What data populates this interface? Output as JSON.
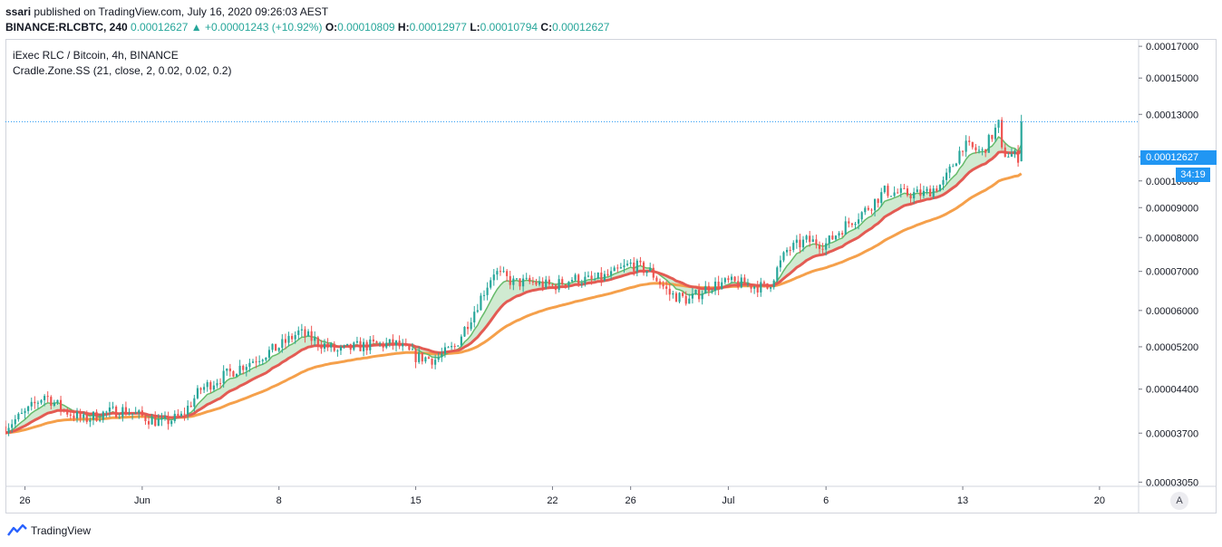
{
  "header": {
    "publisher": "ssari",
    "published_text": "published on TradingView.com, July 16, 2020 09:26:03 AEST",
    "symbol": "BINANCE:RLCBTC, 240",
    "last_price": "0.00012627",
    "change": "+0.00001243 (+10.92%)",
    "open_label": "O:",
    "open": "0.00010809",
    "high_label": "H:",
    "high": "0.00012977",
    "low_label": "L:",
    "low": "0.00010794",
    "close_label": "C:",
    "close": "0.00012627"
  },
  "legend": {
    "title": "iExec RLC / Bitcoin, 4h, BINANCE",
    "study": "Cradle.Zone.SS (21, close, 2, 0.02, 0.02, 0.2)"
  },
  "badges": {
    "price": "0.00012627",
    "countdown": "34:19",
    "auto_scale": "A"
  },
  "footer": {
    "brand": "TradingView",
    "logo_icon": "tradingview-logo-icon"
  },
  "colors": {
    "up": "#26a69a",
    "down": "#ef5350",
    "ema_fast": "#66bb6a",
    "ema_mid": "#e35b53",
    "ema_slow": "#f5a04b",
    "zone": "#c8e6c9",
    "price_line": "#2196f3"
  },
  "chart_data": {
    "type": "candlestick",
    "y_scale": "log",
    "ylim": [
      3e-05,
      0.000175
    ],
    "y_ticks": [
      "0.00017000",
      "0.00015000",
      "0.00013000",
      "0.00011000",
      "0.00010000",
      "0.00009000",
      "0.00008000",
      "0.00007000",
      "0.00006000",
      "0.00005200",
      "0.00004400",
      "0.00003700",
      "0.00003050"
    ],
    "x_ticks": [
      {
        "label": "26",
        "date": "2020-05-26"
      },
      {
        "label": "Jun",
        "date": "2020-06-01"
      },
      {
        "label": "8",
        "date": "2020-06-08"
      },
      {
        "label": "15",
        "date": "2020-06-15"
      },
      {
        "label": "22",
        "date": "2020-06-22"
      },
      {
        "label": "26",
        "date": "2020-06-26"
      },
      {
        "label": "Jul",
        "date": "2020-07-01"
      },
      {
        "label": "6",
        "date": "2020-07-06"
      },
      {
        "label": "13",
        "date": "2020-07-13"
      },
      {
        "label": "20",
        "date": "2020-07-20"
      }
    ],
    "x_range": [
      "2020-05-25",
      "2020-07-22"
    ],
    "price_series": [
      [
        "2020-05-25",
        3.8e-05
      ],
      [
        "2020-05-26",
        4e-05
      ],
      [
        "2020-05-27",
        4.3e-05
      ],
      [
        "2020-05-28",
        4.05e-05
      ],
      [
        "2020-05-29",
        3.9e-05
      ],
      [
        "2020-05-30",
        4e-05
      ],
      [
        "2020-05-31",
        4.05e-05
      ],
      [
        "2020-06-01",
        3.95e-05
      ],
      [
        "2020-06-02",
        3.85e-05
      ],
      [
        "2020-06-03",
        3.95e-05
      ],
      [
        "2020-06-04",
        4.4e-05
      ],
      [
        "2020-06-05",
        4.6e-05
      ],
      [
        "2020-06-06",
        4.8e-05
      ],
      [
        "2020-06-07",
        5e-05
      ],
      [
        "2020-06-08",
        5.2e-05
      ],
      [
        "2020-06-09",
        5.5e-05
      ],
      [
        "2020-06-10",
        5.3e-05
      ],
      [
        "2020-06-11",
        5.1e-05
      ],
      [
        "2020-06-12",
        5.2e-05
      ],
      [
        "2020-06-13",
        5.25e-05
      ],
      [
        "2020-06-14",
        5.25e-05
      ],
      [
        "2020-06-15",
        5e-05
      ],
      [
        "2020-06-16",
        4.95e-05
      ],
      [
        "2020-06-17",
        5.2e-05
      ],
      [
        "2020-06-18",
        6e-05
      ],
      [
        "2020-06-19",
        7e-05
      ],
      [
        "2020-06-20",
        6.7e-05
      ],
      [
        "2020-06-21",
        6.7e-05
      ],
      [
        "2020-06-22",
        6.6e-05
      ],
      [
        "2020-06-23",
        6.8e-05
      ],
      [
        "2020-06-24",
        6.75e-05
      ],
      [
        "2020-06-25",
        6.9e-05
      ],
      [
        "2020-06-26",
        7.2e-05
      ],
      [
        "2020-06-27",
        7e-05
      ],
      [
        "2020-06-28",
        6.4e-05
      ],
      [
        "2020-06-29",
        6.25e-05
      ],
      [
        "2020-06-30",
        6.6e-05
      ],
      [
        "2020-07-01",
        6.7e-05
      ],
      [
        "2020-07-02",
        6.65e-05
      ],
      [
        "2020-07-03",
        6.55e-05
      ],
      [
        "2020-07-04",
        7.6e-05
      ],
      [
        "2020-07-05",
        7.9e-05
      ],
      [
        "2020-07-06",
        7.8e-05
      ],
      [
        "2020-07-07",
        8.4e-05
      ],
      [
        "2020-07-08",
        8.9e-05
      ],
      [
        "2020-07-09",
        9.6e-05
      ],
      [
        "2020-07-10",
        9.5e-05
      ],
      [
        "2020-07-11",
        9.5e-05
      ],
      [
        "2020-07-12",
        9.9e-05
      ],
      [
        "2020-07-13",
        0.000115
      ],
      [
        "2020-07-14",
        0.000112
      ],
      [
        "2020-07-14T20:00",
        0.000125
      ],
      [
        "2020-07-15",
        0.000112
      ],
      [
        "2020-07-15T20:00",
        0.00011
      ],
      [
        "2020-07-16",
        0.0001263
      ]
    ]
  }
}
